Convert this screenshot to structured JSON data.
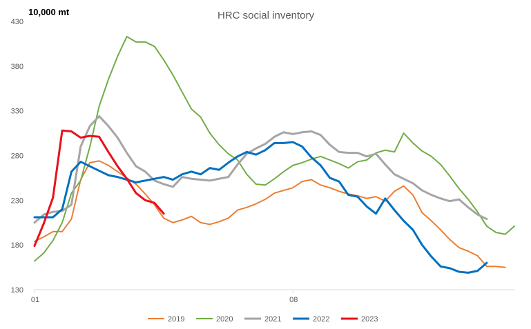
{
  "chart_data": {
    "type": "line",
    "title": "HRC social inventory",
    "unit_label": "10,000 mt",
    "xlabel": "",
    "ylabel": "",
    "ylim": [
      130,
      430
    ],
    "yticks": [
      130,
      180,
      230,
      280,
      330,
      380,
      430
    ],
    "xlim": [
      0,
      52
    ],
    "xticks": [
      {
        "x": 0,
        "label": "01"
      },
      {
        "x": 28,
        "label": "08"
      }
    ],
    "grid": false,
    "legend_position": "bottom",
    "series": [
      {
        "name": "2019",
        "color": "#ED7D31",
        "width": 2,
        "values": [
          184,
          189,
          195,
          195,
          209,
          253,
          272,
          274,
          269,
          262,
          255,
          248,
          237,
          225,
          210,
          205,
          208,
          212,
          205,
          203,
          206,
          210,
          219,
          222,
          226,
          231,
          238,
          241,
          244,
          251,
          253,
          247,
          244,
          240,
          237,
          235,
          232,
          234,
          229,
          240,
          246,
          236,
          216,
          207,
          197,
          186,
          177,
          173,
          168,
          156,
          156,
          155
        ]
      },
      {
        "name": "2020",
        "color": "#70AD47",
        "width": 2,
        "values": [
          162,
          171,
          185,
          205,
          238,
          252,
          290,
          335,
          365,
          391,
          413,
          407,
          407,
          402,
          387,
          370,
          351,
          332,
          323,
          305,
          292,
          282,
          275,
          259,
          248,
          247,
          254,
          262,
          269,
          272,
          276,
          279,
          275,
          271,
          266,
          273,
          275,
          283,
          286,
          284,
          305,
          294,
          285,
          279,
          270,
          257,
          243,
          231,
          217,
          201,
          194,
          192,
          201
        ]
      },
      {
        "name": "2021",
        "color": "#A5A5A5",
        "width": 3,
        "values": [
          205,
          214,
          217,
          218,
          225,
          290,
          313,
          324,
          313,
          300,
          283,
          268,
          262,
          252,
          248,
          245,
          256,
          254,
          253,
          252,
          254,
          256,
          270,
          282,
          288,
          293,
          301,
          306,
          304,
          306,
          307,
          303,
          292,
          284,
          283,
          283,
          279,
          282,
          270,
          259,
          254,
          249,
          241,
          236,
          232,
          229,
          231,
          222,
          214,
          209
        ]
      },
      {
        "name": "2022",
        "color": "#0070C0",
        "width": 3,
        "values": [
          211,
          211,
          211,
          220,
          262,
          273,
          268,
          263,
          258,
          256,
          253,
          250,
          252,
          254,
          256,
          253,
          259,
          262,
          259,
          266,
          264,
          272,
          279,
          284,
          281,
          286,
          294,
          294,
          295,
          290,
          278,
          269,
          255,
          251,
          236,
          234,
          223,
          215,
          232,
          219,
          207,
          197,
          180,
          167,
          156,
          154,
          150,
          149,
          151,
          160
        ]
      },
      {
        "name": "2023",
        "color": "#E8101A",
        "width": 3,
        "values": [
          179,
          204,
          233,
          308,
          307,
          300,
          302,
          301,
          284,
          268,
          254,
          238,
          230,
          227,
          215
        ]
      }
    ]
  }
}
